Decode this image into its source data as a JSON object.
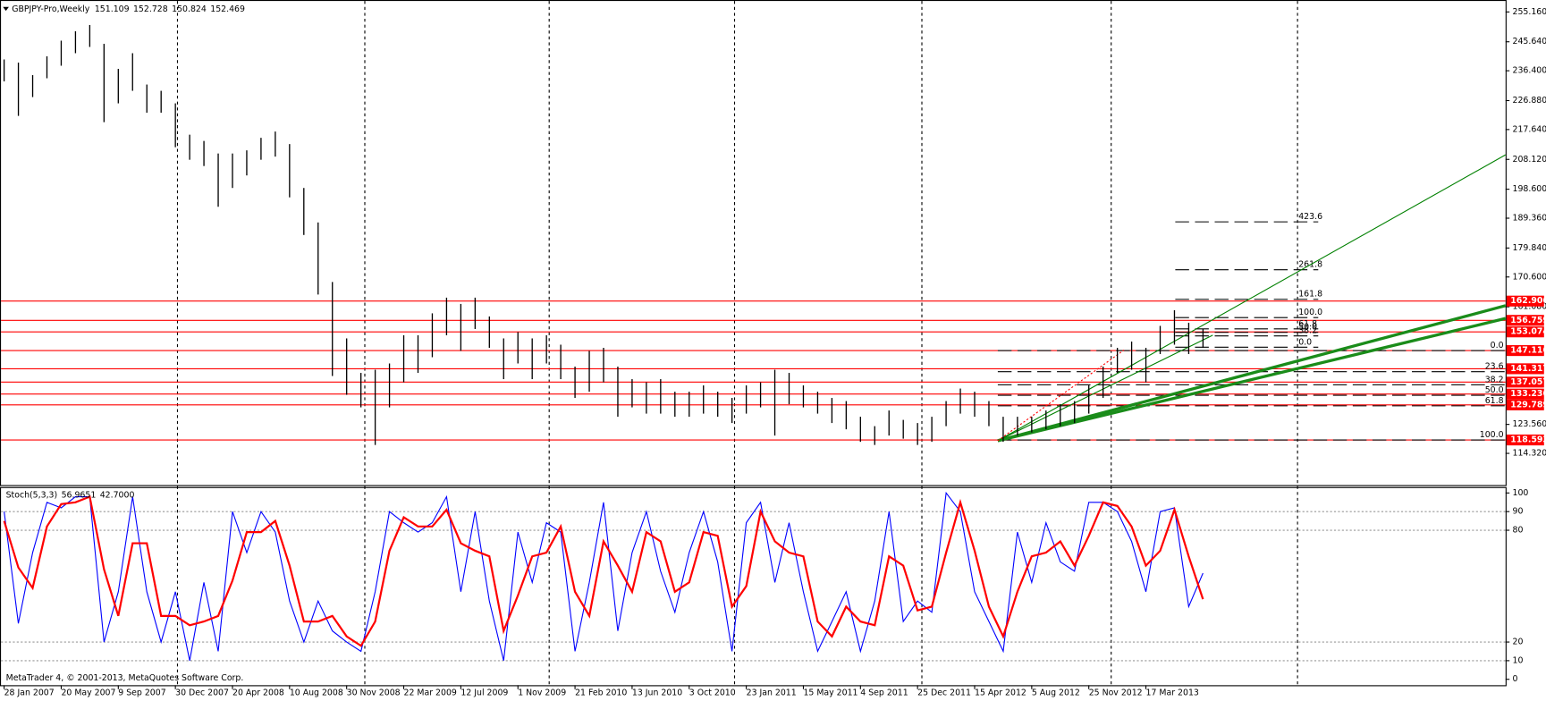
{
  "chart_data": [
    {
      "type": "hilo",
      "title": "GBPJPY-Pro,Weekly",
      "ohlc": [
        151.109,
        152.728,
        150.824,
        152.469
      ],
      "color": "#000000",
      "high": [
        240,
        239,
        235,
        241,
        246,
        249,
        251,
        245,
        237,
        242,
        232,
        230,
        226,
        216,
        214,
        210,
        210,
        211,
        215,
        217,
        213,
        199,
        188,
        169,
        151,
        140,
        141,
        143,
        152,
        152,
        159,
        164,
        162,
        164,
        158,
        151,
        153,
        151,
        152,
        149,
        142,
        147,
        148,
        142,
        138,
        137,
        138,
        134,
        134,
        136,
        134,
        132,
        136,
        137,
        141,
        140,
        136,
        134,
        132,
        131,
        126,
        123,
        128,
        125,
        124,
        126,
        131,
        135,
        134,
        131,
        126,
        126,
        126,
        128,
        130,
        131,
        136,
        142,
        148,
        150,
        148,
        155,
        160,
        156,
        154
      ],
      "low": [
        233,
        222,
        228,
        234,
        238,
        242,
        244,
        220,
        226,
        230,
        223,
        223,
        212,
        208,
        206,
        193,
        199,
        203,
        208,
        209,
        196,
        184,
        165,
        139,
        133,
        129,
        117,
        129,
        137,
        140,
        145,
        152,
        147,
        154,
        148,
        138,
        143,
        138,
        143,
        138,
        132,
        134,
        137,
        126,
        129,
        127,
        127,
        126,
        126,
        127,
        126,
        124,
        127,
        129,
        120,
        130,
        129,
        127,
        124,
        122,
        118,
        117,
        120,
        119,
        117,
        118,
        123,
        127,
        126,
        123,
        118,
        120,
        121,
        122,
        123,
        124,
        127,
        132,
        140,
        141,
        137,
        146,
        149,
        146,
        148
      ],
      "xlim": [
        -0.15,
        105.2
      ],
      "ylim": [
        104.2,
        257.4
      ],
      "yticks": [
        {
          "value": 255.16,
          "label": "255.160"
        },
        {
          "value": 245.64,
          "label": "245.640"
        },
        {
          "value": 236.4,
          "label": "236.400"
        },
        {
          "value": 226.88,
          "label": "226.880"
        },
        {
          "value": 217.64,
          "label": "217.640"
        },
        {
          "value": 208.12,
          "label": "208.120"
        },
        {
          "value": 198.6,
          "label": "198.600"
        },
        {
          "value": 189.36,
          "label": "189.360"
        },
        {
          "value": 179.84,
          "label": "179.840"
        },
        {
          "value": 170.6,
          "label": "170.600"
        },
        {
          "value": 161.08,
          "label": "161.080"
        },
        {
          "value": 123.56,
          "label": "123.560"
        },
        {
          "value": 114.32,
          "label": "114.320"
        }
      ],
      "levels": [
        162.906,
        156.759,
        153.074,
        147.116,
        141.317,
        137.057,
        133.236,
        129.789,
        118.593
      ],
      "level_color": "#ff0000",
      "fibo_retracement": {
        "high": 147.116,
        "low": 118.593,
        "levels": [
          {
            "value": 0,
            "label": "0.0"
          },
          23.6,
          38.2,
          {
            "value": 50,
            "label": "50.0"
          },
          61.8,
          {
            "value": 100,
            "label": "100.0"
          }
        ]
      },
      "fibo_expansion": {
        "low": 148.2,
        "high": 157.64,
        "levels": [
          {
            "value": 0,
            "label": "0.0"
          },
          38.2,
          {
            "value": 50,
            "label": "50.0"
          },
          61.8,
          {
            "value": 100,
            "label": "100.0"
          },
          161.8,
          261.8,
          423.6
        ]
      }
    },
    {
      "type": "line",
      "title": "Stoch(5,3,3)",
      "main_value": 56.9651,
      "signal_value": {
        "value": 42.7,
        "label": "42.7000"
      },
      "series": [
        {
          "color": "#0000ff",
          "width": 1,
          "values": [
            90,
            30,
            68,
            95,
            92,
            98,
            98,
            20,
            47,
            98,
            47,
            20,
            47,
            10,
            52,
            15,
            90,
            68,
            90,
            79,
            42,
            20,
            42,
            26,
            20,
            15,
            47,
            90,
            84,
            79,
            84,
            98,
            47,
            90,
            42,
            10,
            79,
            52,
            84,
            79,
            15,
            52,
            95,
            26,
            68,
            90,
            58,
            36,
            68,
            90,
            63,
            15,
            84,
            95,
            52,
            84,
            47,
            15,
            31,
            47,
            15,
            42,
            90,
            31,
            42,
            36,
            100,
            90,
            47,
            31,
            15,
            79,
            52,
            84,
            63,
            58,
            95,
            95,
            90,
            74,
            47,
            90,
            92,
            39,
            57
          ]
        },
        {
          "color": "#ff0000",
          "width": 2,
          "values": [
            85,
            60,
            49,
            82,
            94,
            95,
            98,
            59,
            34,
            73,
            73,
            34,
            34,
            29,
            31,
            34,
            53,
            79,
            79,
            85,
            61,
            31,
            31,
            34,
            23,
            18,
            31,
            69,
            87,
            82,
            82,
            91,
            73,
            69,
            66,
            26,
            45,
            66,
            68,
            82,
            47,
            34,
            74,
            61,
            47,
            79,
            74,
            47,
            52,
            79,
            77,
            39,
            50,
            90,
            74,
            68,
            66,
            31,
            23,
            39,
            31,
            29,
            66,
            61,
            37,
            39,
            68,
            95,
            69,
            39,
            23,
            47,
            66,
            68,
            74,
            61,
            77,
            95,
            93,
            82,
            61,
            69,
            91,
            66,
            43
          ]
        }
      ],
      "xlim": [
        -0.15,
        105.2
      ],
      "ylim": [
        0,
        100
      ],
      "yticks": [
        0,
        10,
        20,
        80,
        90,
        100
      ],
      "grid": true,
      "xticks": [
        {
          "value": 0,
          "label": "28 Jan 2007"
        },
        {
          "value": 4,
          "label": "20 May 2007"
        },
        {
          "value": 8,
          "label": "9 Sep 2007"
        },
        {
          "value": 12,
          "label": "30 Dec 2007"
        },
        {
          "value": 16,
          "label": "20 Apr 2008"
        },
        {
          "value": 20,
          "label": "10 Aug 2008"
        },
        {
          "value": 24,
          "label": "30 Nov 2008"
        },
        {
          "value": 28,
          "label": "22 Mar 2009"
        },
        {
          "value": 32,
          "label": "12 Jul 2009"
        },
        {
          "value": 36,
          "label": "1 Nov 2009"
        },
        {
          "value": 40,
          "label": "21 Feb 2010"
        },
        {
          "value": 44,
          "label": "13 Jun 2010"
        },
        {
          "value": 48,
          "label": "3 Oct 2010"
        },
        {
          "value": 52,
          "label": "23 Jan 2011"
        },
        {
          "value": 56,
          "label": "15 May 2011"
        },
        {
          "value": 60,
          "label": "4 Sep 2011"
        },
        {
          "value": 64,
          "label": "25 Dec 2011"
        },
        {
          "value": 68,
          "label": "15 Apr 2012"
        },
        {
          "value": 72,
          "label": "5 Aug 2012"
        },
        {
          "value": 76,
          "label": "25 Nov 2012"
        },
        {
          "value": 80,
          "label": "17 Mar 2013"
        }
      ]
    }
  ],
  "footer": "MetaTrader 4, © 2001-2013, MetaQuotes Software Corp."
}
